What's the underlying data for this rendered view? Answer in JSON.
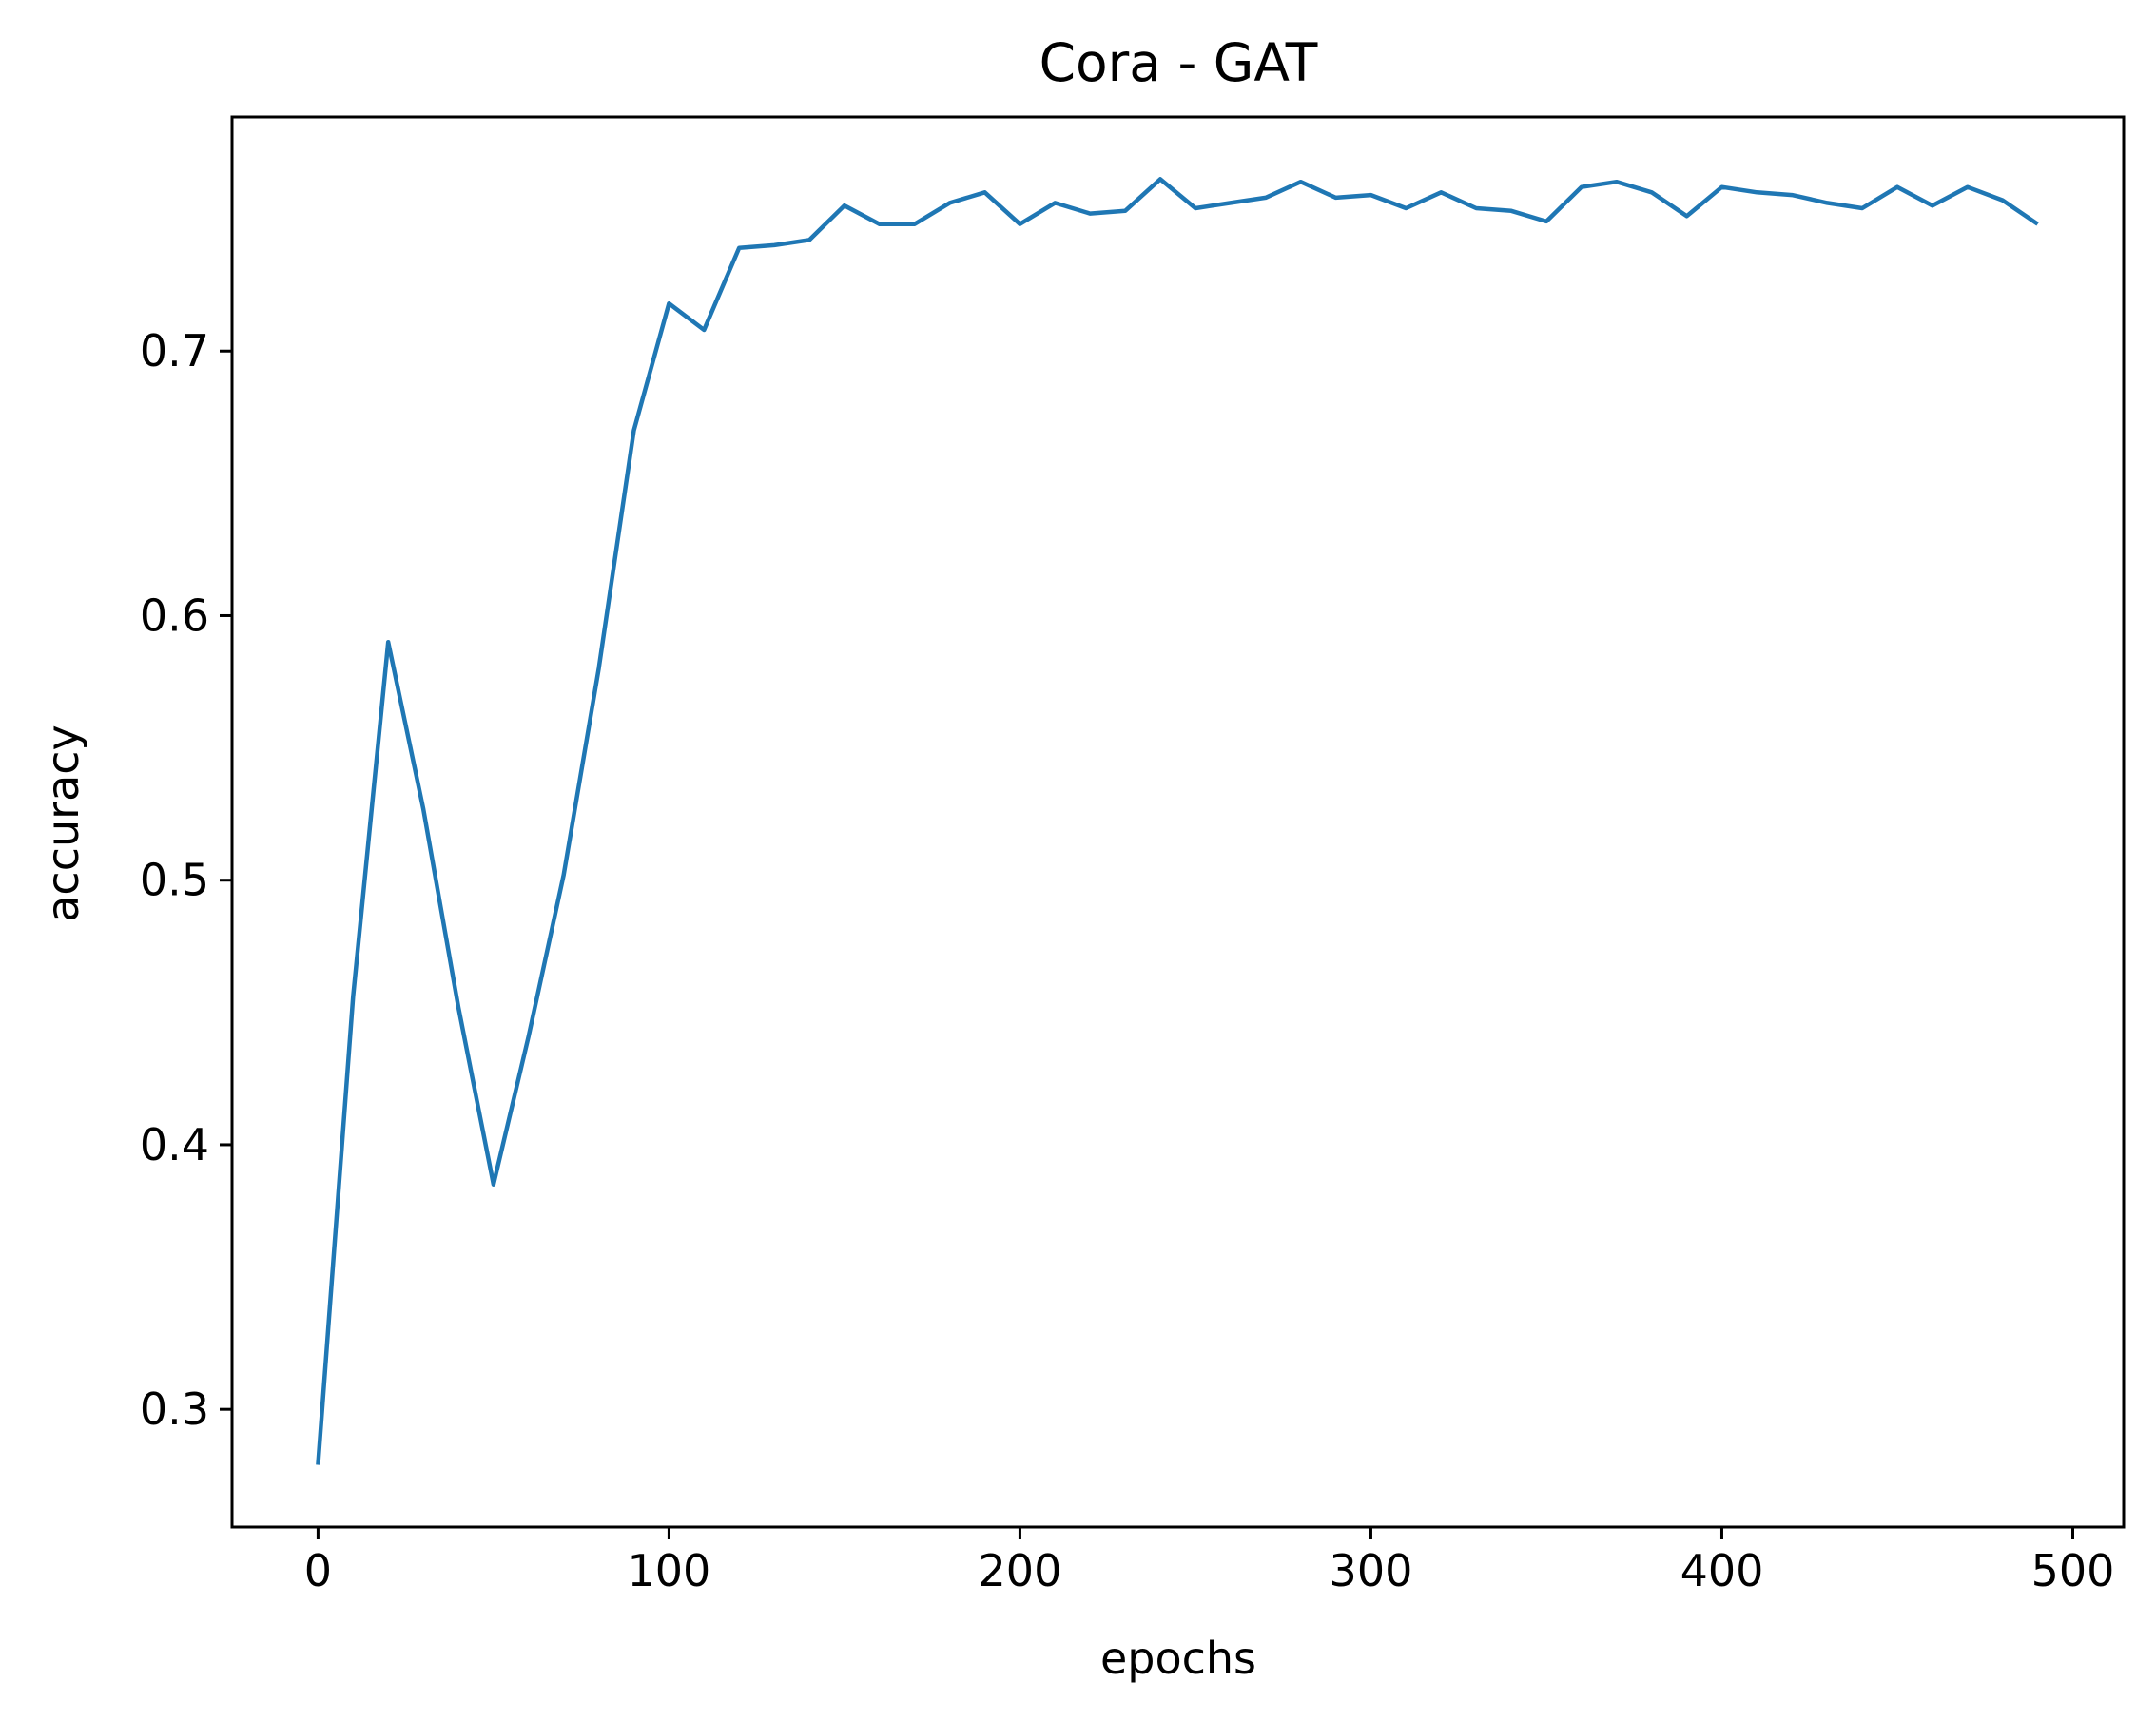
{
  "chart_data": {
    "type": "line",
    "title": "Cora - GAT",
    "xlabel": "epochs",
    "ylabel": "accuracy",
    "xlim": [
      -24.5,
      514.5
    ],
    "ylim": [
      0.2555,
      0.7885
    ],
    "xticks": [
      0,
      100,
      200,
      300,
      400,
      500
    ],
    "xtick_labels": [
      "0",
      "100",
      "200",
      "300",
      "400",
      "500"
    ],
    "yticks": [
      0.3,
      0.4,
      0.5,
      0.6,
      0.7
    ],
    "ytick_labels": [
      "0.3",
      "0.4",
      "0.5",
      "0.6",
      "0.7"
    ],
    "grid": false,
    "legend": "none",
    "line_color": "#1f77b4",
    "series": [
      {
        "x": [
          0,
          10,
          20,
          30,
          40,
          50,
          60,
          70,
          80,
          90,
          100,
          110,
          120,
          130,
          140,
          150,
          160,
          170,
          180,
          190,
          200,
          210,
          220,
          230,
          240,
          250,
          260,
          270,
          280,
          290,
          300,
          310,
          320,
          330,
          340,
          350,
          360,
          370,
          380,
          390,
          400,
          410,
          420,
          430,
          440,
          450,
          460,
          470,
          480,
          490
        ],
        "values": [
          0.279,
          0.456,
          0.59,
          0.527,
          0.452,
          0.385,
          0.441,
          0.502,
          0.58,
          0.67,
          0.718,
          0.708,
          0.739,
          0.74,
          0.742,
          0.755,
          0.748,
          0.748,
          0.756,
          0.76,
          0.748,
          0.756,
          0.752,
          0.753,
          0.765,
          0.754,
          0.756,
          0.758,
          0.764,
          0.758,
          0.759,
          0.754,
          0.76,
          0.754,
          0.753,
          0.749,
          0.762,
          0.764,
          0.76,
          0.751,
          0.762,
          0.76,
          0.759,
          0.756,
          0.754,
          0.762,
          0.755,
          0.762,
          0.757,
          0.748
        ]
      }
    ]
  }
}
